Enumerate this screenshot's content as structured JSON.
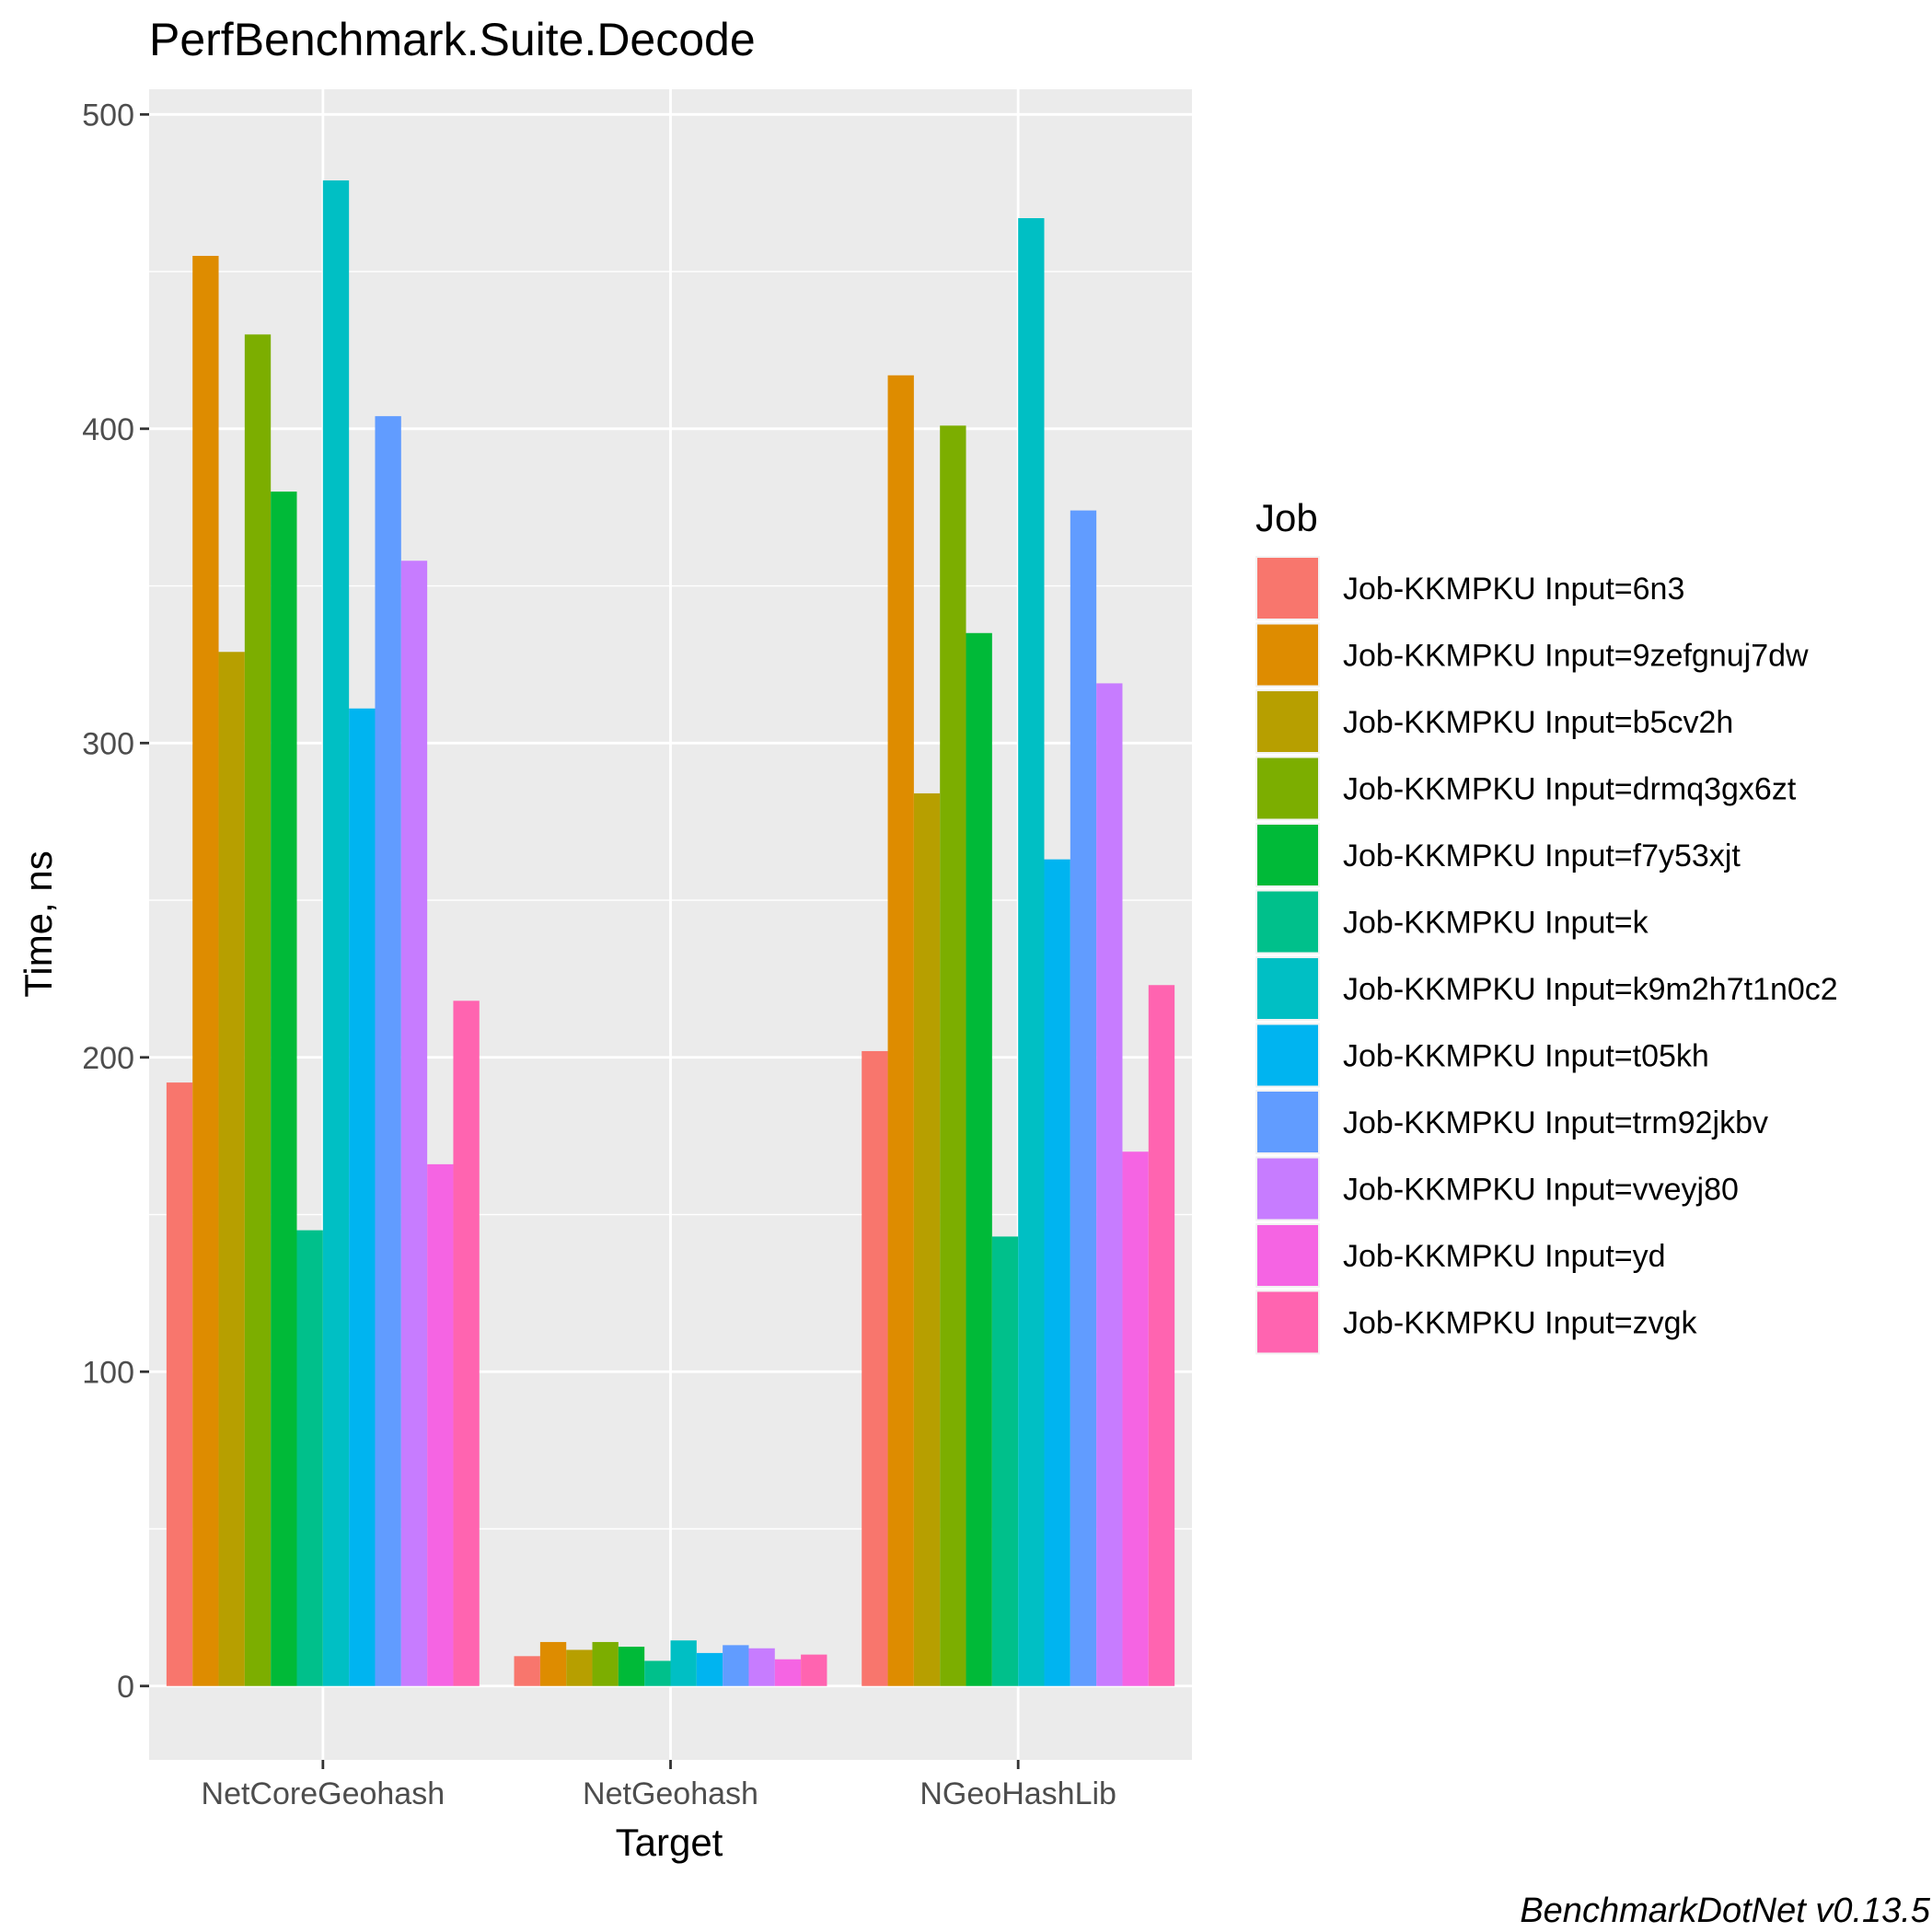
{
  "chart_data": {
    "type": "bar",
    "title": "PerfBenchmark.Suite.Decode",
    "xlabel": "Target",
    "ylabel": "Time, ns",
    "ylim": [
      -23.5,
      508
    ],
    "yticks": [
      0,
      100,
      200,
      300,
      400,
      500
    ],
    "y_minor_ticks": [
      50,
      150,
      250,
      350,
      450
    ],
    "grid": true,
    "categories": [
      "NetCoreGeohash",
      "NetGeohash",
      "NGeoHashLib"
    ],
    "legend": {
      "title": "Job",
      "placement": "right"
    },
    "caption": "BenchmarkDotNet v0.13.5",
    "series": [
      {
        "name": "Job-KKMPKU Input=6n3",
        "color": "#F8766D",
        "values": [
          192,
          9.5,
          202
        ]
      },
      {
        "name": "Job-KKMPKU Input=9zefgnuj7dw",
        "color": "#DE8C00",
        "values": [
          455,
          14,
          417
        ]
      },
      {
        "name": "Job-KKMPKU Input=b5cv2h",
        "color": "#B79F00",
        "values": [
          329,
          11.5,
          284
        ]
      },
      {
        "name": "Job-KKMPKU Input=drmq3gx6zt",
        "color": "#7CAE00",
        "values": [
          430,
          14,
          401
        ]
      },
      {
        "name": "Job-KKMPKU Input=f7y53xjt",
        "color": "#00BA38",
        "values": [
          380,
          12.5,
          335
        ]
      },
      {
        "name": "Job-KKMPKU Input=k",
        "color": "#00C08B",
        "values": [
          145,
          8,
          143
        ]
      },
      {
        "name": "Job-KKMPKU Input=k9m2h7t1n0c2",
        "color": "#00BFC4",
        "values": [
          479,
          14.5,
          467
        ]
      },
      {
        "name": "Job-KKMPKU Input=t05kh",
        "color": "#00B4F0",
        "values": [
          311,
          10.5,
          263
        ]
      },
      {
        "name": "Job-KKMPKU Input=trm92jkbv",
        "color": "#619CFF",
        "values": [
          404,
          13,
          374
        ]
      },
      {
        "name": "Job-KKMPKU Input=vveyj80",
        "color": "#C77CFF",
        "values": [
          358,
          12,
          319
        ]
      },
      {
        "name": "Job-KKMPKU Input=yd",
        "color": "#F564E3",
        "values": [
          166,
          8.5,
          170
        ]
      },
      {
        "name": "Job-KKMPKU Input=zvgk",
        "color": "#FF64B0",
        "values": [
          218,
          10,
          223
        ]
      }
    ]
  }
}
